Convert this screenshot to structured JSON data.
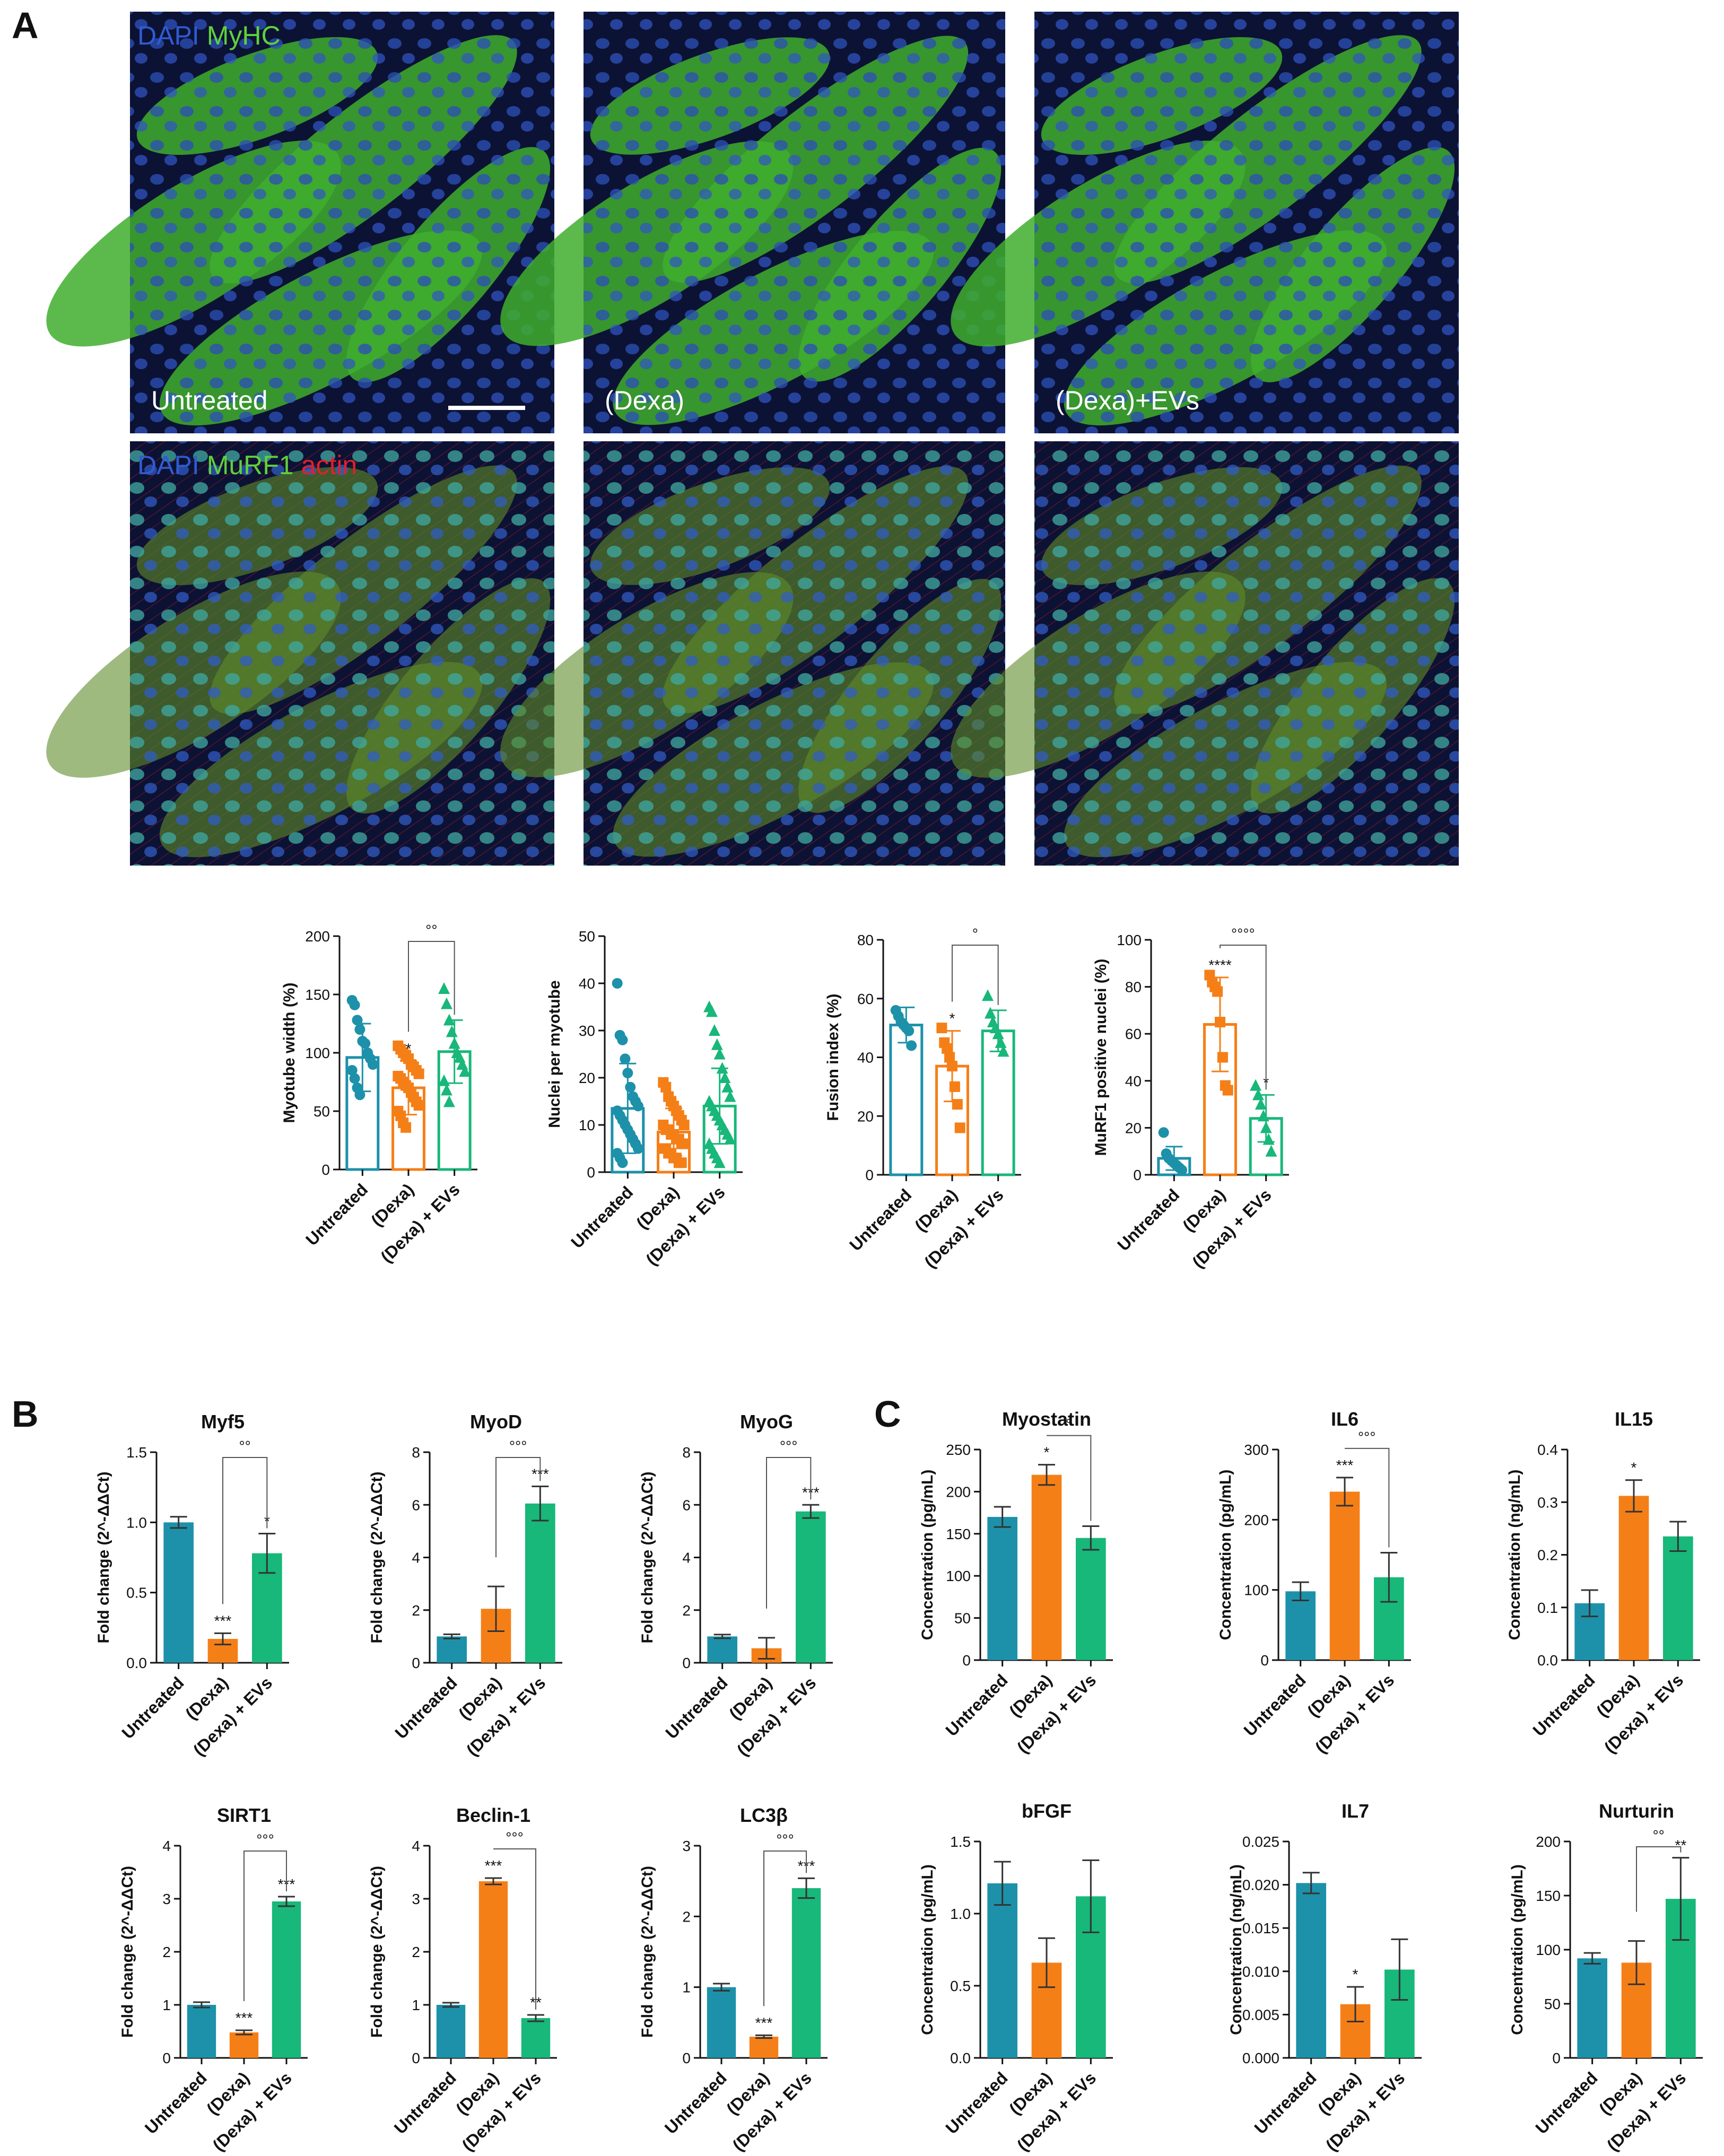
{
  "panel_labels": [
    "A",
    "B",
    "C"
  ],
  "colors": {
    "untreated": "#1d91a9",
    "dexa": "#f57f17",
    "dexa_evs": "#18b77a",
    "axis": "#111111",
    "dapi": "#2f5bd3",
    "myhc": "#5fd03c",
    "actin": "#e0202a"
  },
  "micrographs": [
    {
      "row": "myhc",
      "condition_label": "Untreated",
      "stain_labels": [
        "DAPI",
        "MyHC"
      ],
      "scale_bar": true
    },
    {
      "row": "myhc",
      "condition_label": "(Dexa)",
      "stain_labels": [],
      "scale_bar": false
    },
    {
      "row": "myhc",
      "condition_label": "(Dexa)+EVs",
      "stain_labels": [],
      "scale_bar": false
    },
    {
      "row": "murf1",
      "condition_label": "",
      "stain_labels": [
        "DAPI",
        "MuRF1",
        "actin"
      ],
      "scale_bar": false
    },
    {
      "row": "murf1",
      "condition_label": "",
      "stain_labels": [],
      "scale_bar": false
    },
    {
      "row": "murf1",
      "condition_label": "",
      "stain_labels": [],
      "scale_bar": false
    }
  ],
  "chart_data": [
    {
      "type": "bar",
      "panel": "A",
      "title": "",
      "ylabel": "Myotube width (%)",
      "categories": [
        "Untreated",
        "(Dexa)",
        "(Dexa) + EVs"
      ],
      "values": [
        96,
        70,
        101
      ],
      "errors": [
        29,
        23,
        27
      ],
      "ylim": [
        0,
        200
      ],
      "yticks": [
        0,
        50,
        100,
        150,
        200
      ],
      "tick_labels": [
        "0",
        "50",
        "100",
        "150",
        "200"
      ],
      "style": "outline",
      "markers": [
        "circle",
        "square",
        "triangle"
      ],
      "points": [
        [
          145,
          141,
          128,
          120,
          110,
          108,
          100,
          95,
          90,
          85,
          78,
          70,
          64
        ],
        [
          106,
          103,
          100,
          98,
          95,
          90,
          88,
          85,
          82,
          80,
          78,
          75,
          72,
          70,
          66,
          62,
          58,
          55,
          50,
          46,
          40,
          36
        ],
        [
          155,
          142,
          128,
          118,
          108,
          100,
          96,
          90,
          84,
          76,
          68,
          58
        ]
      ],
      "significance": [
        {
          "bar": 1,
          "text": "*"
        }
      ],
      "bracket": {
        "from": 1,
        "to": 2,
        "text": "°°"
      }
    },
    {
      "type": "bar",
      "panel": "A",
      "title": "",
      "ylabel": "Nuclei per myotube",
      "categories": [
        "Untreated",
        "(Dexa)",
        "(Dexa) + EVs"
      ],
      "values": [
        13.5,
        8.5,
        14
      ],
      "errors": [
        9.5,
        5,
        8
      ],
      "ylim": [
        0,
        50
      ],
      "yticks": [
        0,
        10,
        20,
        30,
        40,
        50
      ],
      "tick_labels": [
        "0",
        "10",
        "20",
        "30",
        "40",
        "50"
      ],
      "style": "outline",
      "markers": [
        "circle",
        "square",
        "triangle"
      ],
      "points": [
        [
          40,
          29,
          28,
          24,
          21,
          18,
          16,
          15,
          14,
          13,
          12,
          11,
          10,
          9,
          8,
          7,
          6,
          5,
          4,
          3,
          2
        ],
        [
          19,
          18,
          16,
          15,
          14,
          13,
          12,
          11,
          10,
          10,
          9,
          9,
          8,
          8,
          7,
          7,
          6,
          6,
          5,
          5,
          4,
          4,
          3,
          3,
          2,
          2
        ],
        [
          35,
          34,
          30,
          27,
          25,
          22,
          20,
          18,
          16,
          15,
          14,
          13,
          12,
          11,
          10,
          9,
          8,
          7,
          6,
          5,
          4,
          3,
          2
        ]
      ],
      "significance": [],
      "bracket": null
    },
    {
      "type": "bar",
      "panel": "A",
      "title": "",
      "ylabel": "Fusion index (%)",
      "categories": [
        "Untreated",
        "(Dexa)",
        "(Dexa) + EVs"
      ],
      "values": [
        51,
        37,
        49
      ],
      "errors": [
        6,
        12,
        7
      ],
      "ylim": [
        0,
        80
      ],
      "yticks": [
        0,
        20,
        40,
        60,
        80
      ],
      "tick_labels": [
        "0",
        "20",
        "40",
        "60",
        "80"
      ],
      "style": "outline",
      "markers": [
        "circle",
        "square",
        "triangle"
      ],
      "points": [
        [
          56,
          54,
          52,
          51,
          50,
          49,
          44
        ],
        [
          50,
          45,
          43,
          40,
          37,
          30,
          24,
          16
        ],
        [
          61,
          55,
          52,
          50,
          48,
          45,
          42
        ]
      ],
      "significance": [
        {
          "bar": 1,
          "text": "*"
        }
      ],
      "bracket": {
        "from": 1,
        "to": 2,
        "text": "°"
      }
    },
    {
      "type": "bar",
      "panel": "A",
      "title": "",
      "ylabel": "MuRF1 positive nuclei (%)",
      "categories": [
        "Untreated",
        "(Dexa)",
        "(Dexa) + EVs"
      ],
      "values": [
        7,
        64,
        24
      ],
      "errors": [
        5,
        20,
        10
      ],
      "ylim": [
        0,
        100
      ],
      "yticks": [
        0,
        20,
        40,
        60,
        80,
        100
      ],
      "tick_labels": [
        "0",
        "20",
        "40",
        "60",
        "80",
        "100"
      ],
      "style": "outline",
      "markers": [
        "circle",
        "square",
        "triangle"
      ],
      "points": [
        [
          18,
          9,
          7,
          6,
          5,
          4,
          3,
          2
        ],
        [
          85,
          82,
          80,
          78,
          65,
          50,
          38,
          36
        ],
        [
          38,
          34,
          30,
          25,
          20,
          15,
          10
        ]
      ],
      "significance": [
        {
          "bar": 1,
          "text": "****"
        },
        {
          "bar": 2,
          "text": "*"
        }
      ],
      "bracket": {
        "from": 1,
        "to": 2,
        "text": "°°°°"
      }
    },
    {
      "type": "bar",
      "panel": "B",
      "title": "Myf5",
      "ylabel": "Fold change (2^-ΔΔCt)",
      "categories": [
        "Untreated",
        "(Dexa)",
        "(Dexa) + EVs"
      ],
      "values": [
        1.0,
        0.17,
        0.78
      ],
      "errors": [
        0.04,
        0.04,
        0.14
      ],
      "ylim": [
        0,
        1.5
      ],
      "yticks": [
        0,
        0.5,
        1.0,
        1.5
      ],
      "tick_labels": [
        "0.0",
        "0.5",
        "1.0",
        "1.5"
      ],
      "style": "filled",
      "significance": [
        {
          "bar": 1,
          "text": "***"
        },
        {
          "bar": 2,
          "text": "*"
        }
      ],
      "bracket": {
        "from": 1,
        "to": 2,
        "text": "°°"
      }
    },
    {
      "type": "bar",
      "panel": "B",
      "title": "MyoD",
      "ylabel": "Fold change (2^-ΔΔCt)",
      "categories": [
        "Untreated",
        "(Dexa)",
        "(Dexa) + EVs"
      ],
      "values": [
        1.0,
        2.05,
        6.05
      ],
      "errors": [
        0.08,
        0.85,
        0.65
      ],
      "ylim": [
        0,
        8
      ],
      "yticks": [
        0,
        2,
        4,
        6,
        8
      ],
      "tick_labels": [
        "0",
        "2",
        "4",
        "6",
        "8"
      ],
      "style": "filled",
      "significance": [
        {
          "bar": 2,
          "text": "***"
        }
      ],
      "bracket": {
        "from": 1,
        "to": 2,
        "text": "°°°"
      }
    },
    {
      "type": "bar",
      "panel": "B",
      "title": "MyoG",
      "ylabel": "Fold change (2^-ΔΔCt)",
      "categories": [
        "Untreated",
        "(Dexa)",
        "(Dexa) + EVs"
      ],
      "values": [
        1.0,
        0.55,
        5.75
      ],
      "errors": [
        0.07,
        0.4,
        0.25
      ],
      "ylim": [
        0,
        8
      ],
      "yticks": [
        0,
        2,
        4,
        6,
        8
      ],
      "tick_labels": [
        "0",
        "2",
        "4",
        "6",
        "8"
      ],
      "style": "filled",
      "significance": [
        {
          "bar": 2,
          "text": "***"
        }
      ],
      "bracket": {
        "from": 1,
        "to": 2,
        "text": "°°°"
      }
    },
    {
      "type": "bar",
      "panel": "B",
      "title": "SIRT1",
      "ylabel": "Fold change (2^-ΔΔCt)",
      "categories": [
        "Untreated",
        "(Dexa)",
        "(Dexa) + EVs"
      ],
      "values": [
        1.0,
        0.48,
        2.95
      ],
      "errors": [
        0.05,
        0.04,
        0.09
      ],
      "ylim": [
        0,
        4
      ],
      "yticks": [
        0,
        1,
        2,
        3,
        4
      ],
      "tick_labels": [
        "0",
        "1",
        "2",
        "3",
        "4"
      ],
      "style": "filled",
      "significance": [
        {
          "bar": 1,
          "text": "***"
        },
        {
          "bar": 2,
          "text": "***"
        }
      ],
      "bracket": {
        "from": 1,
        "to": 2,
        "text": "°°°"
      }
    },
    {
      "type": "bar",
      "panel": "B",
      "title": "Beclin-1",
      "ylabel": "Fold change (2^-ΔΔCt)",
      "categories": [
        "Untreated",
        "(Dexa)",
        "(Dexa) + EVs"
      ],
      "values": [
        1.0,
        3.33,
        0.75
      ],
      "errors": [
        0.04,
        0.06,
        0.06
      ],
      "ylim": [
        0,
        4
      ],
      "yticks": [
        0,
        1,
        2,
        3,
        4
      ],
      "tick_labels": [
        "0",
        "1",
        "2",
        "3",
        "4"
      ],
      "style": "filled",
      "significance": [
        {
          "bar": 1,
          "text": "***"
        },
        {
          "bar": 2,
          "text": "**"
        }
      ],
      "bracket": {
        "from": 1,
        "to": 2,
        "text": "°°°"
      }
    },
    {
      "type": "bar",
      "panel": "B",
      "title": "LC3β",
      "ylabel": "Fold change (2^-ΔΔCt)",
      "categories": [
        "Untreated",
        "(Dexa)",
        "(Dexa) + EVs"
      ],
      "values": [
        1.0,
        0.3,
        2.4
      ],
      "errors": [
        0.05,
        0.02,
        0.14
      ],
      "ylim": [
        0,
        3
      ],
      "yticks": [
        0,
        1,
        2,
        3
      ],
      "tick_labels": [
        "0",
        "1",
        "2",
        "3"
      ],
      "style": "filled",
      "significance": [
        {
          "bar": 1,
          "text": "***"
        },
        {
          "bar": 2,
          "text": "***"
        }
      ],
      "bracket": {
        "from": 1,
        "to": 2,
        "text": "°°°"
      }
    },
    {
      "type": "bar",
      "panel": "C",
      "title": "Myostatin",
      "ylabel": "Concentration (pg/mL)",
      "categories": [
        "Untreated",
        "(Dexa)",
        "(Dexa) + EVs"
      ],
      "values": [
        170,
        220,
        145
      ],
      "errors": [
        12,
        12,
        14
      ],
      "ylim": [
        0,
        250
      ],
      "yticks": [
        0,
        50,
        100,
        150,
        200,
        250
      ],
      "tick_labels": [
        "0",
        "50",
        "100",
        "150",
        "200",
        "250"
      ],
      "style": "filled",
      "significance": [
        {
          "bar": 1,
          "text": "*"
        }
      ],
      "bracket": {
        "from": 1,
        "to": 2,
        "text": "°"
      }
    },
    {
      "type": "bar",
      "panel": "C",
      "title": "IL6",
      "ylabel": "Concentration (pg/mL)",
      "categories": [
        "Untreated",
        "(Dexa)",
        "(Dexa) + EVs"
      ],
      "values": [
        98,
        240,
        118
      ],
      "errors": [
        13,
        20,
        35
      ],
      "ylim": [
        0,
        300
      ],
      "yticks": [
        0,
        100,
        200,
        300
      ],
      "tick_labels": [
        "0",
        "100",
        "200",
        "300"
      ],
      "style": "filled",
      "significance": [
        {
          "bar": 1,
          "text": "***"
        }
      ],
      "bracket": {
        "from": 1,
        "to": 2,
        "text": "°°°"
      }
    },
    {
      "type": "bar",
      "panel": "C",
      "title": "IL15",
      "ylabel": "Concentration (ng/mL)",
      "categories": [
        "Untreated",
        "(Dexa)",
        "(Dexa) + EVs"
      ],
      "values": [
        0.108,
        0.312,
        0.235
      ],
      "errors": [
        0.025,
        0.03,
        0.028
      ],
      "ylim": [
        0,
        0.4
      ],
      "yticks": [
        0,
        0.1,
        0.2,
        0.3,
        0.4
      ],
      "tick_labels": [
        "0.0",
        "0.1",
        "0.2",
        "0.3",
        "0.4"
      ],
      "style": "filled",
      "significance": [
        {
          "bar": 1,
          "text": "*"
        }
      ],
      "bracket": null
    },
    {
      "type": "bar",
      "panel": "C",
      "title": "bFGF",
      "ylabel": "Concentration (pg/mL)",
      "categories": [
        "Untreated",
        "(Dexa)",
        "(Dexa) + EVs"
      ],
      "values": [
        1.21,
        0.66,
        1.12
      ],
      "errors": [
        0.15,
        0.17,
        0.25
      ],
      "ylim": [
        0,
        1.5
      ],
      "yticks": [
        0,
        0.5,
        1.0,
        1.5
      ],
      "tick_labels": [
        "0.0",
        "0.5",
        "1.0",
        "1.5"
      ],
      "style": "filled",
      "significance": [],
      "bracket": null
    },
    {
      "type": "bar",
      "panel": "C",
      "title": "IL7",
      "ylabel": "Concentration (ng/mL)",
      "categories": [
        "Untreated",
        "(Dexa)",
        "(Dexa) + EVs"
      ],
      "values": [
        0.0202,
        0.0062,
        0.0102
      ],
      "errors": [
        0.0012,
        0.002,
        0.0035
      ],
      "ylim": [
        0,
        0.025
      ],
      "yticks": [
        0,
        0.005,
        0.01,
        0.015,
        0.02,
        0.025
      ],
      "tick_labels": [
        "0.000",
        "0.005",
        "0.010",
        "0.015",
        "0.020",
        "0.025"
      ],
      "style": "filled",
      "significance": [
        {
          "bar": 1,
          "text": "*"
        }
      ],
      "bracket": null
    },
    {
      "type": "bar",
      "panel": "C",
      "title": "Nurturin",
      "ylabel": "Concentration (pg/mL)",
      "categories": [
        "Untreated",
        "(Dexa)",
        "(Dexa) + EVs"
      ],
      "values": [
        92,
        88,
        147
      ],
      "errors": [
        5,
        20,
        38
      ],
      "ylim": [
        0,
        200
      ],
      "yticks": [
        0,
        50,
        100,
        150,
        200
      ],
      "tick_labels": [
        "0",
        "50",
        "100",
        "150",
        "200"
      ],
      "style": "filled",
      "significance": [
        {
          "bar": 2,
          "text": "**"
        }
      ],
      "bracket": {
        "from": 1,
        "to": 2,
        "text": "°°"
      }
    }
  ]
}
